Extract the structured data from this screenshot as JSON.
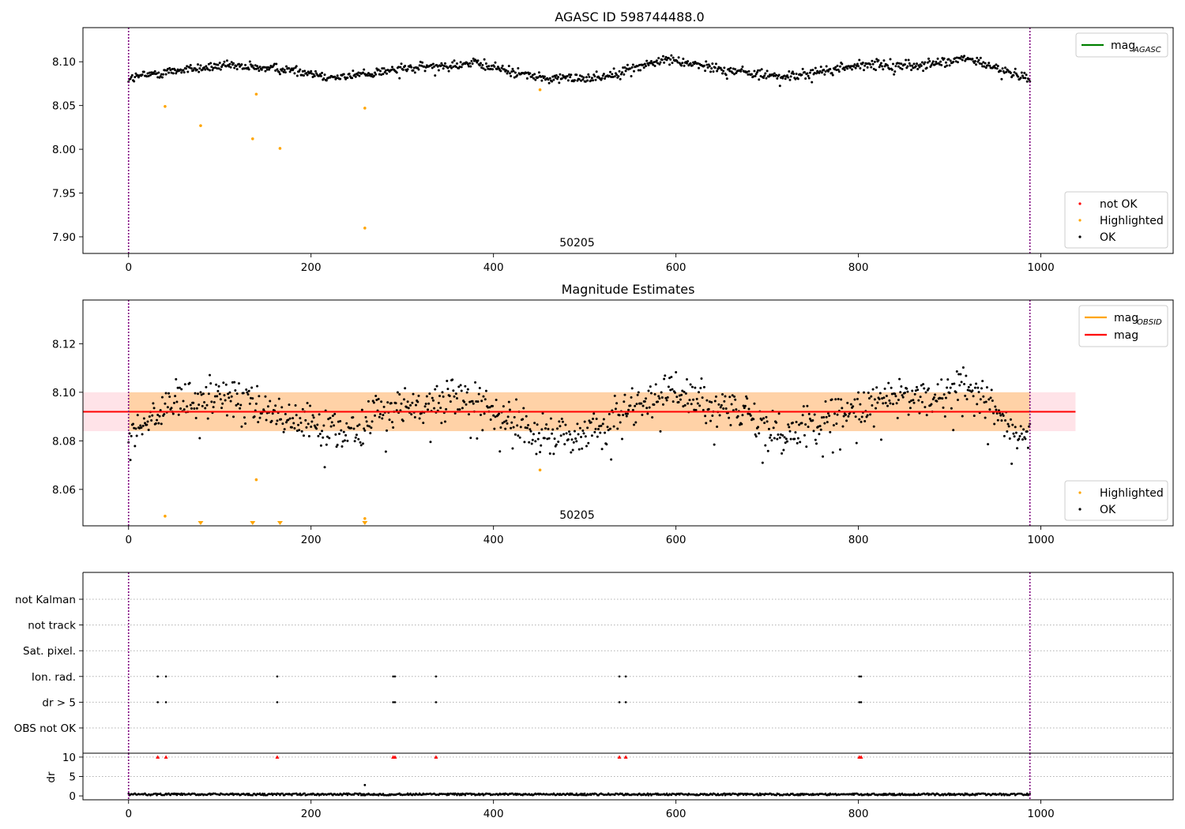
{
  "chart_data": [
    {
      "type": "scatter",
      "title": "AGASC ID 598744488.0",
      "xlim": [
        -50,
        1145
      ],
      "ylim": [
        7.881,
        8.139
      ],
      "x_ticks": [
        0,
        200,
        400,
        600,
        800,
        1000
      ],
      "y_ticks": [
        7.9,
        7.95,
        8.0,
        8.05,
        8.1
      ],
      "y_tick_labels": [
        "7.90",
        "7.95",
        "8.00",
        "8.05",
        "8.10"
      ],
      "vlines": [
        0,
        988
      ],
      "annotation": {
        "text": "50205",
        "x": 494
      },
      "legend_lines": [
        {
          "label": "mag",
          "sub": "AGASC",
          "color": "#008000"
        }
      ],
      "legend_points": [
        {
          "label": "not OK",
          "color": "#ff0000"
        },
        {
          "label": "Highlighted",
          "color": "#ffa500"
        },
        {
          "label": "OK",
          "color": "#000000"
        }
      ],
      "series": [
        {
          "name": "Highlighted",
          "color": "#ffa500",
          "points": [
            [
              40,
              8.049
            ],
            [
              79,
              8.027
            ],
            [
              136,
              8.012
            ],
            [
              140,
              8.063
            ],
            [
              166,
              8.001
            ],
            [
              259,
              7.91
            ],
            [
              259,
              8.047
            ],
            [
              451,
              8.068
            ]
          ]
        }
      ],
      "ok_profile": [
        [
          0,
          8.081
        ],
        [
          50,
          8.09
        ],
        [
          100,
          8.095
        ],
        [
          170,
          8.092
        ],
        [
          230,
          8.082
        ],
        [
          300,
          8.092
        ],
        [
          380,
          8.098
        ],
        [
          460,
          8.08
        ],
        [
          520,
          8.083
        ],
        [
          590,
          8.103
        ],
        [
          650,
          8.092
        ],
        [
          720,
          8.082
        ],
        [
          800,
          8.096
        ],
        [
          870,
          8.096
        ],
        [
          920,
          8.103
        ],
        [
          988,
          8.08
        ]
      ],
      "ok_spread": 0.004
    },
    {
      "type": "scatter",
      "title": "Magnitude Estimates",
      "xlim": [
        -50,
        1145
      ],
      "ylim": [
        8.045,
        8.138
      ],
      "x_ticks": [
        0,
        200,
        400,
        600,
        800,
        1000
      ],
      "y_ticks": [
        8.06,
        8.08,
        8.1,
        8.12
      ],
      "y_tick_labels": [
        "8.06",
        "8.08",
        "8.10",
        "8.12"
      ],
      "vlines": [
        0,
        988
      ],
      "annotation": {
        "text": "50205",
        "x": 494
      },
      "mag": 8.092,
      "mag_band": {
        "low": 8.084,
        "high": 8.1,
        "x": [
          -50,
          1038
        ]
      },
      "legend_lines": [
        {
          "label": "mag",
          "sub": "OBSID",
          "color": "#ffa500"
        },
        {
          "label": "mag",
          "sub": "",
          "color": "#ff0000"
        }
      ],
      "legend_points": [
        {
          "label": "Highlighted",
          "color": "#ffa500"
        },
        {
          "label": "OK",
          "color": "#000000"
        }
      ],
      "series": [
        {
          "name": "Highlighted",
          "color": "#ffa500",
          "points": [
            [
              40,
              8.049
            ],
            [
              140,
              8.064
            ],
            [
              259,
              8.048
            ],
            [
              451,
              8.068
            ]
          ],
          "clipped_x": [
            79,
            136,
            166,
            259
          ]
        }
      ],
      "ok_profile": [
        [
          0,
          8.081
        ],
        [
          50,
          8.095
        ],
        [
          100,
          8.098
        ],
        [
          170,
          8.09
        ],
        [
          230,
          8.083
        ],
        [
          300,
          8.094
        ],
        [
          380,
          8.097
        ],
        [
          460,
          8.08
        ],
        [
          520,
          8.086
        ],
        [
          590,
          8.101
        ],
        [
          650,
          8.093
        ],
        [
          720,
          8.083
        ],
        [
          800,
          8.095
        ],
        [
          870,
          8.098
        ],
        [
          920,
          8.101
        ],
        [
          988,
          8.08
        ]
      ],
      "ok_spread": 0.006
    },
    {
      "type": "scatter",
      "title": "",
      "xlim": [
        -50,
        1145
      ],
      "categories": [
        "not Kalman",
        "not track",
        "Sat. pixel.",
        "Ion. rad.",
        "dr > 5",
        "OBS not OK"
      ],
      "vlines": [
        0,
        988
      ],
      "flags": {
        "Ion. rad.": [
          32,
          41,
          163,
          290,
          292,
          337,
          538,
          545,
          801,
          803
        ],
        "dr > 5": [
          32,
          41,
          163,
          290,
          292,
          337,
          538,
          545,
          801,
          803
        ]
      }
    },
    {
      "type": "scatter",
      "title": "",
      "xlim": [
        -50,
        1145
      ],
      "ylim": [
        -1,
        11
      ],
      "ylabel": "dr",
      "y_ticks": [
        0,
        5,
        10
      ],
      "x_ticks": [
        0,
        200,
        400,
        600,
        800,
        1000
      ],
      "vlines": [
        0,
        988
      ],
      "clipped_markers": {
        "color": "#ff0000",
        "x": [
          32,
          41,
          163,
          290,
          292,
          337,
          538,
          545,
          801,
          803
        ]
      },
      "outliers": [
        [
          259,
          2.8
        ]
      ],
      "dr_baseline": 0.4
    }
  ]
}
